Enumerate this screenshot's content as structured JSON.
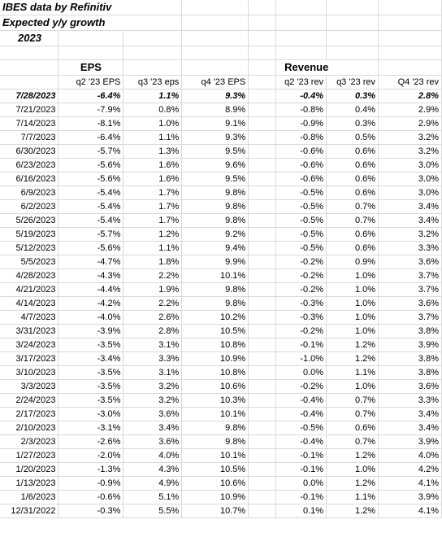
{
  "title": {
    "line1": "IBES data by Refinitiv",
    "line2": "Expected y/y growth",
    "year": "2023"
  },
  "group_headers": {
    "eps": "EPS",
    "revenue": "Revenue"
  },
  "column_headers": [
    "q2 '23 EPS",
    "q3 '23 eps",
    "q4 '23 EPS",
    "q2 '23 rev",
    "q3 '23 rev",
    "Q4 '23 rev"
  ],
  "highlight_row": {
    "date": "7/28/2023",
    "values": [
      "-6.4%",
      "1.1%",
      "9.3%",
      "-0.4%",
      "0.3%",
      "2.8%"
    ]
  },
  "rows": [
    {
      "date": "7/21/2023",
      "values": [
        "-7.9%",
        "0.8%",
        "8.9%",
        "-0.8%",
        "0.4%",
        "2.9%"
      ]
    },
    {
      "date": "7/14/2023",
      "values": [
        "-8.1%",
        "1.0%",
        "9.1%",
        "-0.9%",
        "0.3%",
        "2.9%"
      ]
    },
    {
      "date": "7/7/2023",
      "values": [
        "-6.4%",
        "1.1%",
        "9.3%",
        "-0.8%",
        "0.5%",
        "3.2%"
      ]
    },
    {
      "date": "6/30/2023",
      "values": [
        "-5.7%",
        "1.3%",
        "9.5%",
        "-0.6%",
        "0.6%",
        "3.2%"
      ]
    },
    {
      "date": "6/23/2023",
      "values": [
        "-5.6%",
        "1.6%",
        "9.6%",
        "-0.6%",
        "0.6%",
        "3.0%"
      ]
    },
    {
      "date": "6/16/2023",
      "values": [
        "-5.6%",
        "1.6%",
        "9.5%",
        "-0.6%",
        "0.6%",
        "3.0%"
      ]
    },
    {
      "date": "6/9/2023",
      "values": [
        "-5.4%",
        "1.7%",
        "9.8%",
        "-0.5%",
        "0.6%",
        "3.0%"
      ]
    },
    {
      "date": "6/2/2023",
      "values": [
        "-5.4%",
        "1.7%",
        "9.8%",
        "-0.5%",
        "0.7%",
        "3.4%"
      ]
    },
    {
      "date": "5/26/2023",
      "values": [
        "-5.4%",
        "1.7%",
        "9.8%",
        "-0.5%",
        "0.7%",
        "3.4%"
      ]
    },
    {
      "date": "5/19/2023",
      "values": [
        "-5.7%",
        "1.2%",
        "9.2%",
        "-0.5%",
        "0.6%",
        "3.2%"
      ]
    },
    {
      "date": "5/12/2023",
      "values": [
        "-5.6%",
        "1.1%",
        "9.4%",
        "-0.5%",
        "0.6%",
        "3.3%"
      ]
    },
    {
      "date": "5/5/2023",
      "values": [
        "-4.7%",
        "1.8%",
        "9.9%",
        "-0.2%",
        "0.9%",
        "3.6%"
      ]
    },
    {
      "date": "4/28/2023",
      "values": [
        "-4.3%",
        "2.2%",
        "10.1%",
        "-0.2%",
        "1.0%",
        "3.7%"
      ]
    },
    {
      "date": "4/21/2023",
      "values": [
        "-4.4%",
        "1.9%",
        "9.8%",
        "-0.2%",
        "1.0%",
        "3.7%"
      ]
    },
    {
      "date": "4/14/2023",
      "values": [
        "-4.2%",
        "2.2%",
        "9.8%",
        "-0.3%",
        "1.0%",
        "3.6%"
      ]
    },
    {
      "date": "4/7/2023",
      "values": [
        "-4.0%",
        "2.6%",
        "10.2%",
        "-0.3%",
        "1.0%",
        "3.7%"
      ]
    },
    {
      "date": "3/31/2023",
      "values": [
        "-3.9%",
        "2.8%",
        "10.5%",
        "-0.2%",
        "1.0%",
        "3.8%"
      ]
    },
    {
      "date": "3/24/2023",
      "values": [
        "-3.5%",
        "3.1%",
        "10.8%",
        "-0.1%",
        "1.2%",
        "3.9%"
      ]
    },
    {
      "date": "3/17/2023",
      "values": [
        "-3.4%",
        "3.3%",
        "10.9%",
        "-1.0%",
        "1.2%",
        "3.8%"
      ]
    },
    {
      "date": "3/10/2023",
      "values": [
        "-3.5%",
        "3.1%",
        "10.8%",
        "0.0%",
        "1.1%",
        "3.8%"
      ]
    },
    {
      "date": "3/3/2023",
      "values": [
        "-3.5%",
        "3.2%",
        "10.6%",
        "-0.2%",
        "1.0%",
        "3.6%"
      ]
    },
    {
      "date": "2/24/2023",
      "values": [
        "-3.5%",
        "3.2%",
        "10.3%",
        "-0.4%",
        "0.7%",
        "3.3%"
      ]
    },
    {
      "date": "2/17/2023",
      "values": [
        "-3.0%",
        "3.6%",
        "10.1%",
        "-0.4%",
        "0.7%",
        "3.4%"
      ]
    },
    {
      "date": "2/10/2023",
      "values": [
        "-3.1%",
        "3.4%",
        "9.8%",
        "-0.5%",
        "0.6%",
        "3.4%"
      ]
    },
    {
      "date": "2/3/2023",
      "values": [
        "-2.6%",
        "3.6%",
        "9.8%",
        "-0.4%",
        "0.7%",
        "3.9%"
      ]
    },
    {
      "date": "1/27/2023",
      "values": [
        "-2.0%",
        "4.0%",
        "10.1%",
        "-0.1%",
        "1.2%",
        "4.0%"
      ]
    },
    {
      "date": "1/20/2023",
      "values": [
        "-1.3%",
        "4.3%",
        "10.5%",
        "-0.1%",
        "1.0%",
        "4.2%"
      ]
    },
    {
      "date": "1/13/2023",
      "values": [
        "-0.9%",
        "4.9%",
        "10.6%",
        "0.0%",
        "1.2%",
        "4.1%"
      ]
    },
    {
      "date": "1/6/2023",
      "values": [
        "-0.6%",
        "5.1%",
        "10.9%",
        "-0.1%",
        "1.1%",
        "3.9%"
      ]
    },
    {
      "date": "12/31/2022",
      "values": [
        "-0.3%",
        "5.5%",
        "10.7%",
        "0.1%",
        "1.2%",
        "4.1%"
      ]
    }
  ]
}
